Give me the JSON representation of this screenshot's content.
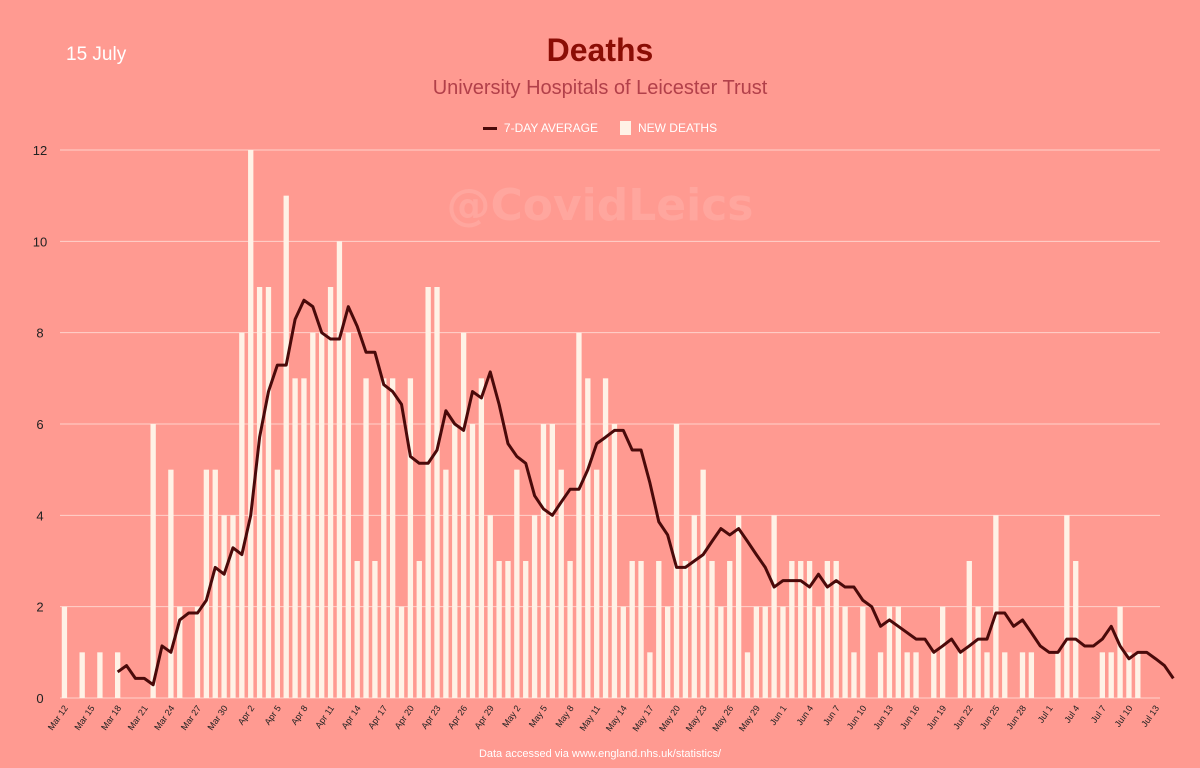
{
  "header": {
    "date": "15 July",
    "title": "Deaths",
    "subtitle": "University Hospitals of Leicester Trust",
    "watermark": "@CovidLeics",
    "footer": "Data accessed via www.england.nhs.uk/statistics/"
  },
  "colors": {
    "background": "#ff9a91",
    "bar": "#fff2e6",
    "line": "#4a0a0a",
    "title": "#8b0d05",
    "subtitle": "#b2404a"
  },
  "chart_data": {
    "type": "bar",
    "title": "Deaths",
    "subtitle": "University Hospitals of Leicester Trust",
    "legend": [
      "7-DAY AVERAGE",
      "NEW DEATHS"
    ],
    "legend_position": "top-center",
    "ylim": [
      0,
      12
    ],
    "yticks": [
      0,
      2,
      4,
      6,
      8,
      10,
      12
    ],
    "grid": true,
    "x_start": "Mar 12",
    "x_end": "Jul 13",
    "x_tick_labels": [
      "Mar 12",
      "Mar 15",
      "Mar 18",
      "Mar 21",
      "Mar 24",
      "Mar 27",
      "Mar 30",
      "Apr 2",
      "Apr 5",
      "Apr 8",
      "Apr 11",
      "Apr 14",
      "Apr 17",
      "Apr 20",
      "Apr 23",
      "Apr 26",
      "Apr 29",
      "May 2",
      "May 5",
      "May 8",
      "May 11",
      "May 14",
      "May 17",
      "May 20",
      "May 23",
      "May 26",
      "May 29",
      "Jun 1",
      "Jun 4",
      "Jun 7",
      "Jun 10",
      "Jun 13",
      "Jun 16",
      "Jun 19",
      "Jun 22",
      "Jun 25",
      "Jun 28",
      "Jul 1",
      "Jul 4",
      "Jul 7",
      "Jul 10",
      "Jul 13"
    ],
    "series": [
      {
        "name": "NEW DEATHS",
        "kind": "bar",
        "values": [
          2,
          0,
          1,
          0,
          1,
          0,
          1,
          0,
          0,
          0,
          6,
          0,
          5,
          2,
          0,
          2,
          5,
          5,
          4,
          4,
          8,
          12,
          9,
          9,
          5,
          11,
          7,
          7,
          8,
          8,
          9,
          10,
          8,
          3,
          7,
          3,
          7,
          7,
          2,
          7,
          3,
          9,
          9,
          5,
          6,
          8,
          6,
          7,
          4,
          3,
          3,
          5,
          3,
          4,
          6,
          6,
          5,
          3,
          8,
          7,
          5,
          7,
          6,
          2,
          3,
          3,
          1,
          3,
          2,
          6,
          3,
          4,
          5,
          3,
          2,
          3,
          4,
          1,
          2,
          2,
          4,
          2,
          3,
          3,
          3,
          2,
          3,
          3,
          2,
          1,
          2,
          0,
          1,
          2,
          2,
          1,
          1,
          0,
          1,
          2,
          0,
          1,
          3,
          2,
          1,
          4,
          1,
          0,
          1,
          1,
          0,
          0,
          1,
          4,
          3,
          0,
          0,
          1,
          1,
          2,
          1,
          1,
          0,
          0
        ]
      },
      {
        "name": "7-DAY AVERAGE",
        "kind": "line",
        "start_index": 6,
        "values": [
          0.57,
          0.71,
          0.43,
          0.43,
          0.29,
          1.14,
          1.0,
          1.71,
          1.86,
          1.86,
          2.14,
          2.86,
          2.71,
          3.29,
          3.14,
          4.0,
          5.71,
          6.71,
          7.29,
          7.29,
          8.29,
          8.71,
          8.57,
          8.0,
          7.86,
          7.86,
          8.57,
          8.14,
          7.57,
          7.57,
          6.86,
          6.71,
          6.43,
          5.29,
          5.14,
          5.14,
          5.43,
          6.29,
          6.0,
          5.86,
          6.71,
          6.57,
          7.14,
          6.43,
          5.57,
          5.29,
          5.14,
          4.43,
          4.14,
          4.0,
          4.29,
          4.57,
          4.57,
          5.0,
          5.57,
          5.71,
          5.86,
          5.86,
          5.43,
          5.43,
          4.71,
          3.86,
          3.57,
          2.86,
          2.86,
          3.0,
          3.14,
          3.43,
          3.71,
          3.57,
          3.71,
          3.43,
          3.14,
          2.86,
          2.43,
          2.57,
          2.57,
          2.57,
          2.43,
          2.71,
          2.43,
          2.57,
          2.43,
          2.43,
          2.14,
          2.0,
          1.57,
          1.71,
          1.57,
          1.43,
          1.29,
          1.29,
          1.0,
          1.14,
          1.29,
          1.0,
          1.14,
          1.29,
          1.29,
          1.86,
          1.86,
          1.57,
          1.71,
          1.43,
          1.14,
          1.0,
          1.0,
          1.29,
          1.29,
          1.14,
          1.14,
          1.29,
          1.57,
          1.14,
          0.86,
          1.0,
          1.0,
          0.86,
          0.71,
          0.43
        ]
      }
    ]
  }
}
